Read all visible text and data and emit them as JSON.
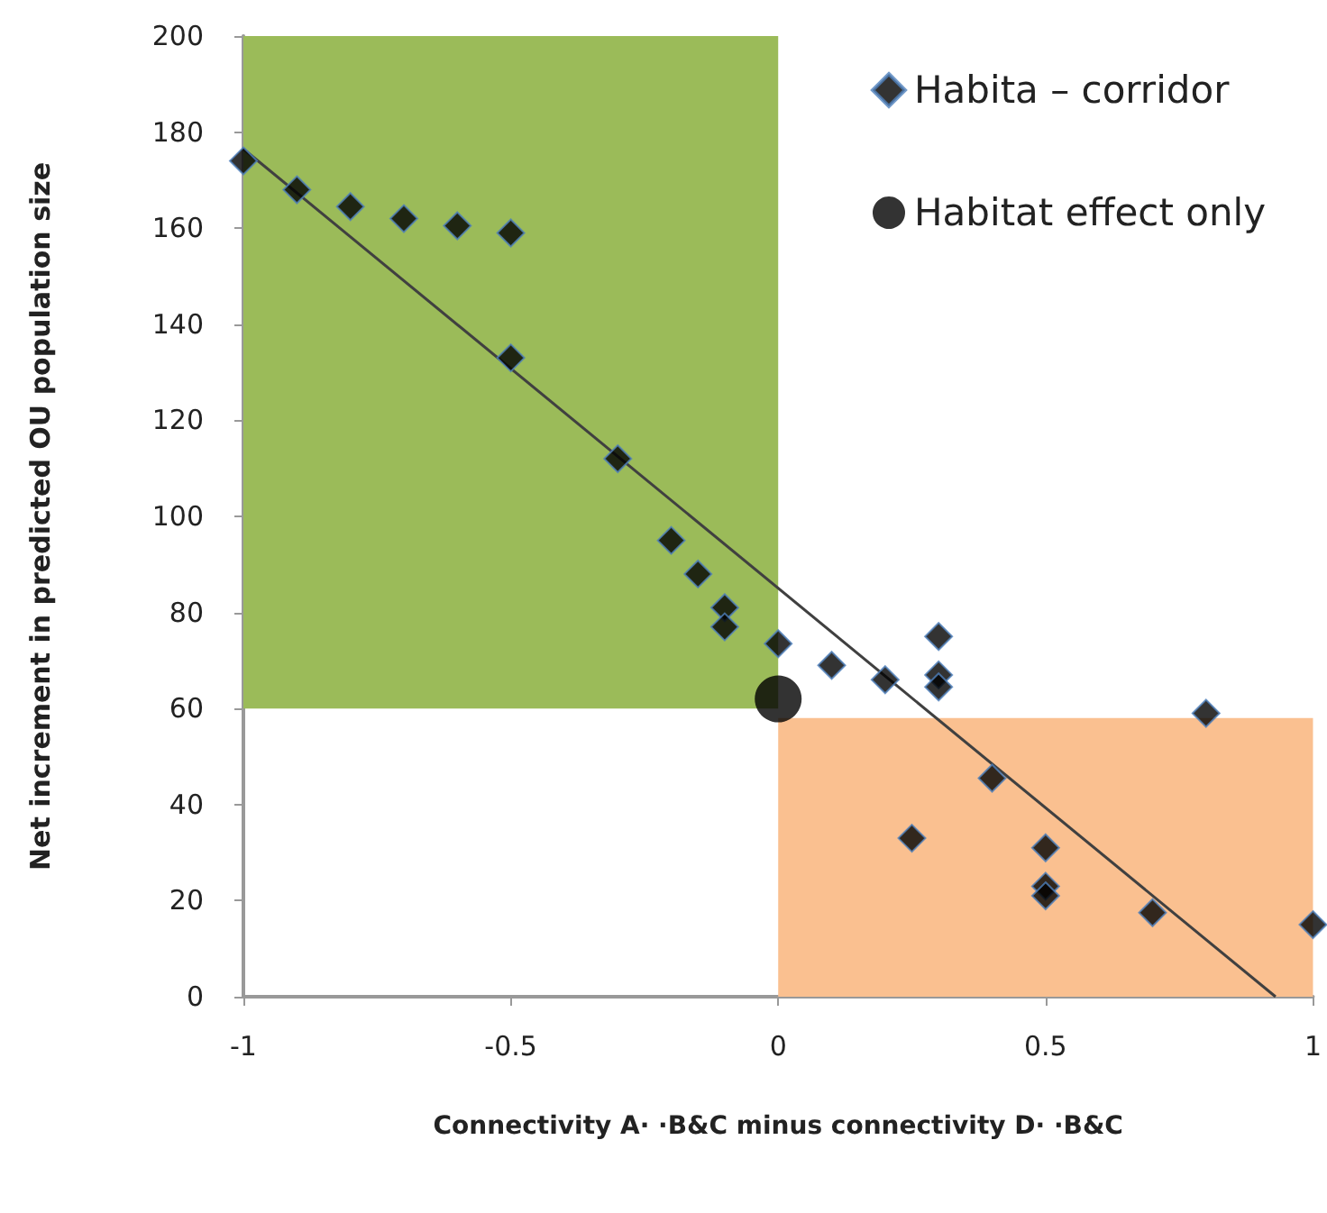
{
  "chart_data": {
    "type": "scatter",
    "xlabel": "Connectivity A· ·B&C minus connectivity D· ·B&C",
    "ylabel": "Net increment in predicted OU population size",
    "xlim": [
      -1,
      1
    ],
    "xticks": [
      -1,
      -0.5,
      0,
      0.5,
      1
    ],
    "ylim": [
      0,
      200
    ],
    "yticks": [
      0,
      20,
      40,
      60,
      80,
      100,
      120,
      140,
      160,
      180,
      200
    ],
    "grid": false,
    "legend": "top right",
    "series": [
      {
        "type": "line",
        "color": "#9bbb59",
        "x": [
          -1,
          0
        ],
        "values": [
          null,
          null
        ],
        "lower": [
          60,
          60
        ],
        "upper": [
          200,
          200
        ]
      },
      {
        "type": "line",
        "color": "#fac090",
        "x": [
          0,
          1
        ],
        "values": [
          null,
          null
        ],
        "lower": [
          0,
          0
        ],
        "upper": [
          58,
          58
        ]
      },
      {
        "type": "line",
        "color": "#404040",
        "marker": "none",
        "x": [
          -1,
          0.93
        ],
        "values": [
          176.5,
          0
        ]
      },
      {
        "type": "scatter",
        "name": "Habita – corridor",
        "color": "#000000",
        "marker": "diamond",
        "x": [
          -1,
          -0.9,
          -0.8,
          -0.7,
          -0.6,
          -0.5,
          -0.5,
          -0.3,
          -0.2,
          -0.15,
          -0.1,
          -0.1,
          0,
          0.1,
          0.2,
          0.3,
          0.3,
          0.3,
          0.4,
          0.25,
          0.5,
          0.5,
          0.5,
          0.7,
          0.8,
          1
        ],
        "values": [
          174,
          168,
          164.5,
          162,
          160.5,
          159,
          133,
          112,
          95,
          88,
          81,
          77,
          73.5,
          69,
          66,
          75,
          67,
          64.5,
          45.5,
          33,
          31,
          23,
          21,
          17.5,
          59,
          15
        ]
      },
      {
        "name": "Habitat effect only",
        "color": "#000000",
        "marker": "circle",
        "x": [
          0
        ],
        "values": [
          62
        ]
      }
    ]
  }
}
